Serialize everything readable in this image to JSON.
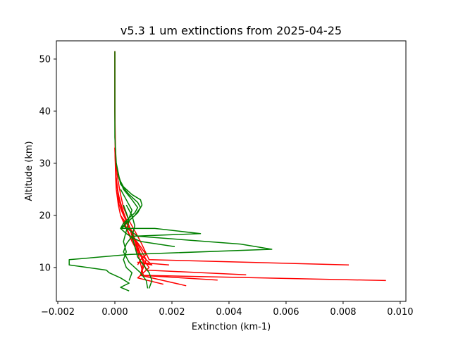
{
  "chart_data": {
    "type": "line",
    "title": "v5.3 1 um extinctions from 2025-04-25",
    "xlabel": "Extinction (km-1)",
    "ylabel": "Altitude (km)",
    "xlim": [
      -0.00205,
      0.0102
    ],
    "ylim": [
      3.5,
      53.5
    ],
    "xticks": [
      -0.002,
      0.0,
      0.002,
      0.004,
      0.006,
      0.008,
      0.01
    ],
    "xtick_labels": [
      "−0.002",
      "0.000",
      "0.002",
      "0.004",
      "0.006",
      "0.008",
      "0.010"
    ],
    "yticks": [
      10,
      20,
      30,
      40,
      50
    ],
    "ytick_labels": [
      "10",
      "20",
      "30",
      "40",
      "50"
    ],
    "grid": false,
    "series_colors": {
      "red": "#ff0000",
      "green": "#008000"
    },
    "series": [
      {
        "color": "red",
        "x": [
          0.0,
          0.0,
          1e-05,
          2e-05,
          3e-05,
          5e-05,
          0.00012,
          0.0002,
          0.0004,
          0.0006,
          0.0007,
          0.0009,
          0.0011,
          0.0009,
          0.0008
        ],
        "y": [
          51.5,
          40,
          33,
          30,
          27,
          25,
          22,
          20,
          18.5,
          17,
          15.5,
          14,
          12.5,
          11.5,
          10.5
        ]
      },
      {
        "color": "red",
        "x": [
          0.0,
          0.0,
          2e-05,
          4e-05,
          0.0001,
          0.0002,
          0.0003,
          0.0005,
          0.0007,
          0.0009,
          0.0012,
          0.0082
        ],
        "y": [
          51.5,
          40,
          33,
          30,
          27,
          24,
          21.5,
          19,
          17,
          15,
          11.5,
          10.5
        ]
      },
      {
        "color": "red",
        "x": [
          0.0,
          2e-05,
          5e-05,
          0.00015,
          0.0003,
          0.0005,
          0.0006,
          0.0008,
          0.0011,
          0.0046
        ],
        "y": [
          33,
          30,
          27,
          22,
          20,
          18,
          16,
          14,
          9.5,
          8.6
        ]
      },
      {
        "color": "red",
        "x": [
          0.0,
          2e-05,
          6e-05,
          0.0002,
          0.00035,
          0.0005,
          0.0007,
          0.0008,
          0.001,
          0.0095
        ],
        "y": [
          33,
          29,
          26,
          22,
          19.5,
          17.5,
          15.5,
          13,
          8.5,
          7.5
        ]
      },
      {
        "color": "red",
        "x": [
          3e-05,
          0.00012,
          0.00025,
          0.0004,
          0.0006,
          0.0008,
          0.001,
          0.0009,
          0.0036
        ],
        "y": [
          28,
          24,
          21.5,
          19,
          16.5,
          14,
          11,
          8.5,
          7.6
        ]
      },
      {
        "color": "red",
        "x": [
          4e-05,
          0.00015,
          0.0003,
          0.0005,
          0.0007,
          0.0009,
          0.0011,
          0.0009,
          0.0025
        ],
        "y": [
          27,
          23,
          20.5,
          18,
          15.5,
          13.5,
          11.5,
          8.5,
          6.5
        ]
      },
      {
        "color": "red",
        "x": [
          0.0002,
          0.0004,
          0.0006,
          0.0008,
          0.001,
          0.0012,
          0.001,
          0.0008,
          0.0017
        ],
        "y": [
          20,
          17.5,
          15,
          13,
          11.5,
          10,
          9,
          8,
          6.8
        ]
      },
      {
        "color": "red",
        "x": [
          0.0003,
          0.0005,
          0.0007,
          0.0009,
          0.0011,
          0.0013,
          0.0008,
          0.0019
        ],
        "y": [
          19,
          16.5,
          14.5,
          12.5,
          11.5,
          10.5,
          11,
          10.5
        ]
      },
      {
        "color": "green",
        "x": [
          0.0,
          0.0,
          0.0,
          5e-05,
          0.00015,
          0.0003,
          0.0006,
          0.0009,
          0.00095,
          0.0008,
          0.0006,
          0.0004,
          0.00025
        ],
        "y": [
          51.5,
          45,
          35,
          30,
          27,
          25.5,
          24,
          23,
          22,
          20.5,
          19.5,
          18.5,
          17.5
        ]
      },
      {
        "color": "green",
        "x": [
          5e-05,
          0.0002,
          0.0005,
          0.0008,
          0.0009,
          0.0007,
          0.0005,
          0.0003,
          0.0002,
          0.0014,
          0.003,
          0.0006,
          0.0004,
          0.0003,
          0.0005,
          0.0009,
          0.0011,
          0.00115
        ],
        "y": [
          30,
          26,
          24,
          22.5,
          21.5,
          20,
          19,
          18,
          17.5,
          17.5,
          16.5,
          16,
          14.5,
          13,
          11,
          9,
          7.5,
          6
        ]
      },
      {
        "color": "green",
        "x": [
          0.0001,
          0.0003,
          0.0006,
          0.0008,
          0.0007,
          0.0005,
          0.0003,
          0.0002,
          0.0004,
          0.0007,
          0.0009,
          0.0021
        ],
        "y": [
          28,
          25,
          23,
          21.5,
          20.5,
          19.5,
          18.5,
          17.5,
          16.5,
          15.5,
          15,
          14
        ]
      },
      {
        "color": "green",
        "x": [
          0.0002,
          0.0004,
          0.0006,
          0.0005,
          0.0003,
          0.0008,
          0.0044,
          0.0055,
          0.0005,
          -0.0016,
          -0.0016,
          -0.0003,
          -0.0002,
          0.0002,
          0.0005,
          0.0002,
          0.0005
        ],
        "y": [
          25,
          23,
          21,
          19.5,
          18,
          16,
          14.5,
          13.5,
          12.5,
          11.5,
          10.5,
          9.5,
          9,
          8,
          7,
          6.2,
          5.5
        ]
      },
      {
        "color": "green",
        "x": [
          0.0003,
          0.0005,
          0.0004,
          0.0003,
          0.0004,
          0.0003,
          0.0004,
          0.0006,
          0.0005
        ],
        "y": [
          22,
          19,
          17,
          15,
          13,
          11.5,
          10,
          9,
          7.5
        ]
      },
      {
        "color": "green",
        "x": [
          0.0004,
          0.0006,
          0.0007,
          0.0006,
          0.0008,
          0.0012,
          0.0013,
          0.0012
        ],
        "y": [
          22,
          20,
          18,
          16,
          12,
          9,
          7.5,
          6
        ]
      }
    ]
  }
}
